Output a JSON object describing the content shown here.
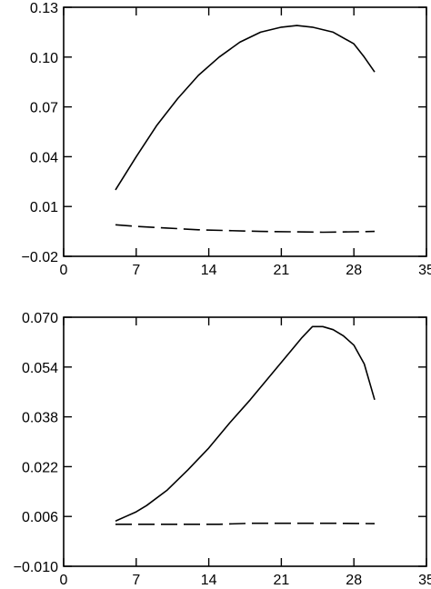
{
  "chart_data": [
    {
      "type": "line",
      "title": "",
      "xlabel": "",
      "ylabel": "",
      "xlim": [
        0,
        35
      ],
      "ylim": [
        -0.02,
        0.13
      ],
      "xticks": [
        0,
        7,
        14,
        21,
        28,
        35
      ],
      "xtick_labels": [
        "0",
        "7",
        "14",
        "21",
        "28",
        "35"
      ],
      "yticks": [
        -0.02,
        0.01,
        0.04,
        0.07,
        0.1,
        0.13
      ],
      "ytick_labels": [
        "−0.02",
        "0.01",
        "0.04",
        "0.07",
        "0.10",
        "0.13"
      ],
      "grid": false,
      "series": [
        {
          "style": "solid",
          "x": [
            5,
            7,
            9,
            11,
            13,
            15,
            17,
            19,
            21,
            22.5,
            24,
            26,
            28,
            29,
            30
          ],
          "y": [
            0.02,
            0.04,
            0.059,
            0.075,
            0.089,
            0.1,
            0.109,
            0.115,
            0.118,
            0.119,
            0.118,
            0.115,
            0.108,
            0.1,
            0.091
          ]
        },
        {
          "style": "dashed",
          "x": [
            5,
            7,
            10,
            13,
            16,
            19,
            22,
            25,
            28,
            30
          ],
          "y": [
            -0.001,
            -0.002,
            -0.003,
            -0.004,
            -0.0045,
            -0.005,
            -0.0052,
            -0.0055,
            -0.0052,
            -0.005
          ]
        }
      ]
    },
    {
      "type": "line",
      "title": "",
      "xlabel": "",
      "ylabel": "",
      "xlim": [
        0,
        35
      ],
      "ylim": [
        -0.01,
        0.07
      ],
      "xticks": [
        0,
        7,
        14,
        21,
        28,
        35
      ],
      "xtick_labels": [
        "0",
        "7",
        "14",
        "21",
        "28",
        "35"
      ],
      "yticks": [
        -0.01,
        0.006,
        0.022,
        0.038,
        0.054,
        0.07
      ],
      "ytick_labels": [
        "−0.010",
        "0.006",
        "0.022",
        "0.038",
        "0.054",
        "0.070"
      ],
      "grid": false,
      "series": [
        {
          "style": "solid",
          "x": [
            5,
            6,
            7,
            8,
            10,
            12,
            14,
            16,
            18,
            20,
            22,
            23,
            24,
            25,
            26,
            27,
            28,
            29,
            30
          ],
          "y": [
            0.0045,
            0.006,
            0.0075,
            0.0095,
            0.0145,
            0.021,
            0.028,
            0.036,
            0.0435,
            0.0515,
            0.0595,
            0.0635,
            0.067,
            0.067,
            0.066,
            0.064,
            0.061,
            0.055,
            0.0435
          ]
        },
        {
          "style": "dashed",
          "x": [
            5,
            10,
            15,
            18,
            22,
            26,
            30
          ],
          "y": [
            0.0035,
            0.0035,
            0.0035,
            0.0038,
            0.0038,
            0.0038,
            0.0037
          ]
        }
      ]
    }
  ]
}
